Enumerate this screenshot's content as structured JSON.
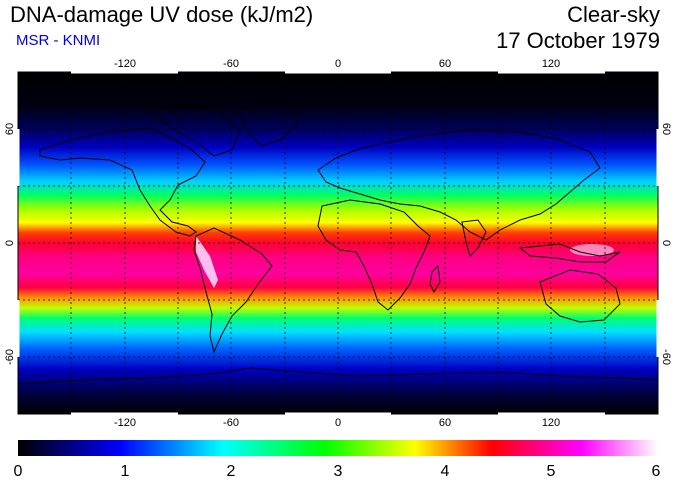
{
  "header": {
    "title": "DNA-damage UV dose (kJ/m2)",
    "subtitle": "MSR - KNMI",
    "mode": "Clear-sky",
    "date": "17 October 1979"
  },
  "map": {
    "lon_ticks": [
      -120,
      -60,
      0,
      60,
      120
    ],
    "lat_ticks": [
      -60,
      0,
      60
    ],
    "lon_tick_labels": [
      "-120",
      "-60",
      "0",
      "60",
      "120"
    ],
    "lat_tick_labels": [
      "-60",
      "0",
      "60"
    ],
    "lon_range": [
      -180,
      180
    ],
    "lat_range": [
      -90,
      90
    ],
    "gridlines": true
  },
  "colorbar": {
    "min": 0,
    "max": 6,
    "tick_labels": [
      "0",
      "1",
      "2",
      "3",
      "4",
      "5",
      "6"
    ],
    "colors": [
      "#000000",
      "#0000ff",
      "#00ffff",
      "#00ff00",
      "#ffff00",
      "#ff0000",
      "#ff00ff",
      "#ffffff"
    ]
  }
}
